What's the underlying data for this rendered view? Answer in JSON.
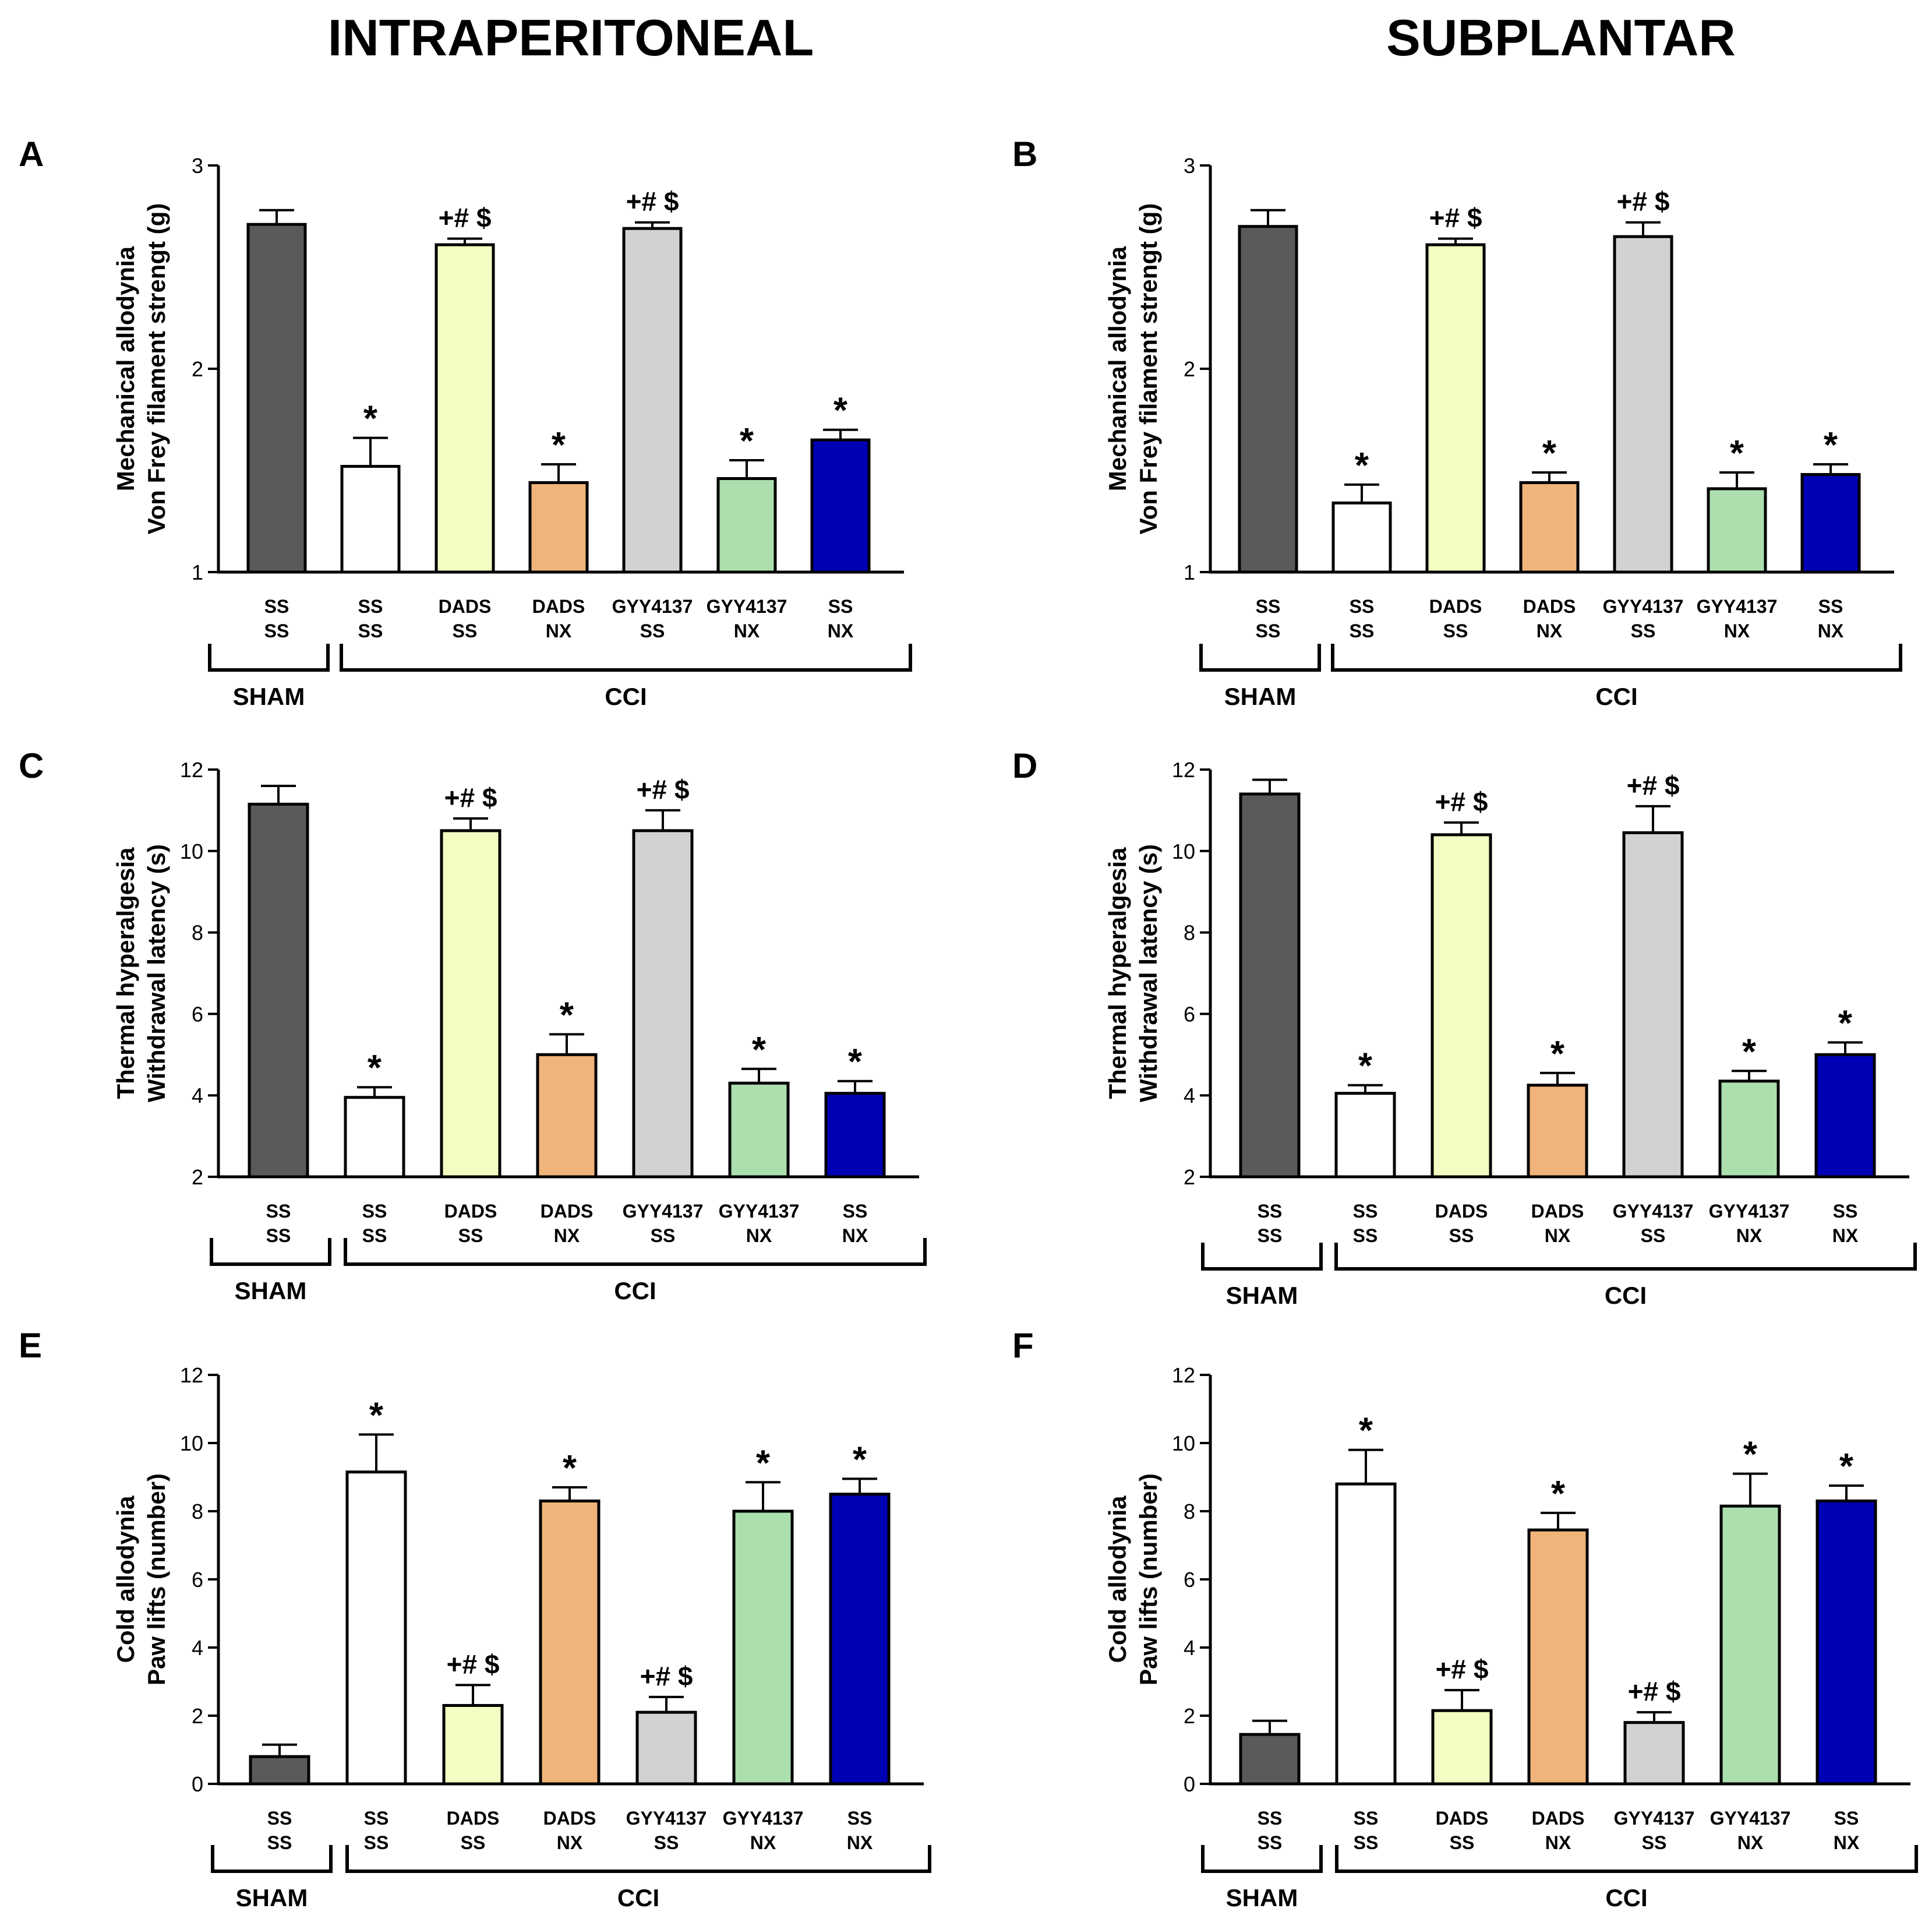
{
  "column_titles": [
    "INTRAPERITONEAL",
    "SUBPLANTAR"
  ],
  "group_labels": {
    "sham": "SHAM",
    "cci": "CCI"
  },
  "chart_data": [
    {
      "panel": "A",
      "type": "bar",
      "ylabel": [
        "Mechanical allodynia",
        "Von Frey filament strengt (g)"
      ],
      "ylim": [
        1,
        3
      ],
      "yticks": [
        1,
        2,
        3
      ],
      "categories": [
        [
          "SS",
          "SS"
        ],
        [
          "SS",
          "SS"
        ],
        [
          "DADS",
          "SS"
        ],
        [
          "DADS",
          "NX"
        ],
        [
          "GYY4137",
          "SS"
        ],
        [
          "GYY4137",
          "NX"
        ],
        [
          "SS",
          "NX"
        ]
      ],
      "values": [
        2.71,
        1.52,
        2.61,
        1.44,
        2.69,
        1.46,
        1.65
      ],
      "errors": [
        0.07,
        0.14,
        0.03,
        0.09,
        0.03,
        0.09,
        0.05
      ],
      "annotations": [
        "",
        "*",
        "+# $",
        "*",
        "+# $",
        "*",
        "*"
      ],
      "colors": [
        "#5a5a5a",
        "#ffffff",
        "#f2fdc2",
        "#f0b47a",
        "#d2d2d2",
        "#acdfae",
        "#0000b4"
      ]
    },
    {
      "panel": "B",
      "type": "bar",
      "ylabel": [
        "Mechanical allodynia",
        "Von Frey filament strengt (g)"
      ],
      "ylim": [
        1,
        3
      ],
      "yticks": [
        1,
        2,
        3
      ],
      "categories": [
        [
          "SS",
          "SS"
        ],
        [
          "SS",
          "SS"
        ],
        [
          "DADS",
          "SS"
        ],
        [
          "DADS",
          "NX"
        ],
        [
          "GYY4137",
          "SS"
        ],
        [
          "GYY4137",
          "NX"
        ],
        [
          "SS",
          "NX"
        ]
      ],
      "values": [
        2.7,
        1.34,
        2.61,
        1.44,
        2.65,
        1.41,
        1.48
      ],
      "errors": [
        0.08,
        0.09,
        0.03,
        0.05,
        0.07,
        0.08,
        0.05
      ],
      "annotations": [
        "",
        "*",
        "+# $",
        "*",
        "+# $",
        "*",
        "*"
      ],
      "colors": [
        "#5a5a5a",
        "#ffffff",
        "#f2fdc2",
        "#f0b47a",
        "#d2d2d2",
        "#acdfae",
        "#0000b4"
      ]
    },
    {
      "panel": "C",
      "type": "bar",
      "ylabel": [
        "Thermal hyperalgesia",
        "Withdrawal latency (s)"
      ],
      "ylim": [
        2,
        12
      ],
      "yticks": [
        2,
        4,
        6,
        8,
        10,
        12
      ],
      "categories": [
        [
          "SS",
          "SS"
        ],
        [
          "SS",
          "SS"
        ],
        [
          "DADS",
          "SS"
        ],
        [
          "DADS",
          "NX"
        ],
        [
          "GYY4137",
          "SS"
        ],
        [
          "GYY4137",
          "NX"
        ],
        [
          "SS",
          "NX"
        ]
      ],
      "values": [
        11.15,
        3.95,
        10.5,
        5.0,
        10.5,
        4.3,
        4.05
      ],
      "errors": [
        0.45,
        0.25,
        0.3,
        0.5,
        0.5,
        0.35,
        0.3
      ],
      "annotations": [
        "",
        "*",
        "+# $",
        "*",
        "+# $",
        "*",
        "*"
      ],
      "colors": [
        "#5a5a5a",
        "#ffffff",
        "#f2fdc2",
        "#f0b47a",
        "#d2d2d2",
        "#acdfae",
        "#0000b4"
      ]
    },
    {
      "panel": "D",
      "type": "bar",
      "ylabel": [
        "Thermal hyperalgesia",
        "Withdrawal latency (s)"
      ],
      "ylim": [
        2,
        12
      ],
      "yticks": [
        2,
        4,
        6,
        8,
        10,
        12
      ],
      "categories": [
        [
          "SS",
          "SS"
        ],
        [
          "SS",
          "SS"
        ],
        [
          "DADS",
          "SS"
        ],
        [
          "DADS",
          "NX"
        ],
        [
          "GYY4137",
          "SS"
        ],
        [
          "GYY4137",
          "NX"
        ],
        [
          "SS",
          "NX"
        ]
      ],
      "values": [
        11.4,
        4.05,
        10.4,
        4.25,
        10.45,
        4.35,
        5.0
      ],
      "errors": [
        0.35,
        0.2,
        0.3,
        0.3,
        0.65,
        0.25,
        0.3
      ],
      "annotations": [
        "",
        "*",
        "+# $",
        "*",
        "+# $",
        "*",
        "*"
      ],
      "colors": [
        "#5a5a5a",
        "#ffffff",
        "#f2fdc2",
        "#f0b47a",
        "#d2d2d2",
        "#acdfae",
        "#0000b4"
      ]
    },
    {
      "panel": "E",
      "type": "bar",
      "ylabel": [
        "Cold allodynia",
        "Paw lifts (number)"
      ],
      "ylim": [
        0,
        12
      ],
      "yticks": [
        0,
        2,
        4,
        6,
        8,
        10,
        12
      ],
      "categories": [
        [
          "SS",
          "SS"
        ],
        [
          "SS",
          "SS"
        ],
        [
          "DADS",
          "SS"
        ],
        [
          "DADS",
          "NX"
        ],
        [
          "GYY4137",
          "SS"
        ],
        [
          "GYY4137",
          "NX"
        ],
        [
          "SS",
          "NX"
        ]
      ],
      "values": [
        0.8,
        9.15,
        2.3,
        8.3,
        2.1,
        8.0,
        8.5
      ],
      "errors": [
        0.35,
        1.1,
        0.6,
        0.4,
        0.45,
        0.85,
        0.45
      ],
      "annotations": [
        "",
        "*",
        "+# $",
        "*",
        "+# $",
        "*",
        "*"
      ],
      "colors": [
        "#5a5a5a",
        "#ffffff",
        "#f2fdc2",
        "#f0b47a",
        "#d2d2d2",
        "#acdfae",
        "#0000b4"
      ]
    },
    {
      "panel": "F",
      "type": "bar",
      "ylabel": [
        "Cold allodynia",
        "Paw lifts (number)"
      ],
      "ylim": [
        0,
        12
      ],
      "yticks": [
        0,
        2,
        4,
        6,
        8,
        10,
        12
      ],
      "categories": [
        [
          "SS",
          "SS"
        ],
        [
          "SS",
          "SS"
        ],
        [
          "DADS",
          "SS"
        ],
        [
          "DADS",
          "NX"
        ],
        [
          "GYY4137",
          "SS"
        ],
        [
          "GYY4137",
          "NX"
        ],
        [
          "SS",
          "NX"
        ]
      ],
      "values": [
        1.45,
        8.8,
        2.15,
        7.45,
        1.8,
        8.15,
        8.3
      ],
      "errors": [
        0.4,
        1.0,
        0.6,
        0.5,
        0.3,
        0.95,
        0.45
      ],
      "annotations": [
        "",
        "*",
        "+# $",
        "*",
        "+# $",
        "*",
        "*"
      ],
      "colors": [
        "#5a5a5a",
        "#ffffff",
        "#f2fdc2",
        "#f0b47a",
        "#d2d2d2",
        "#acdfae",
        "#0000b4"
      ]
    }
  ]
}
